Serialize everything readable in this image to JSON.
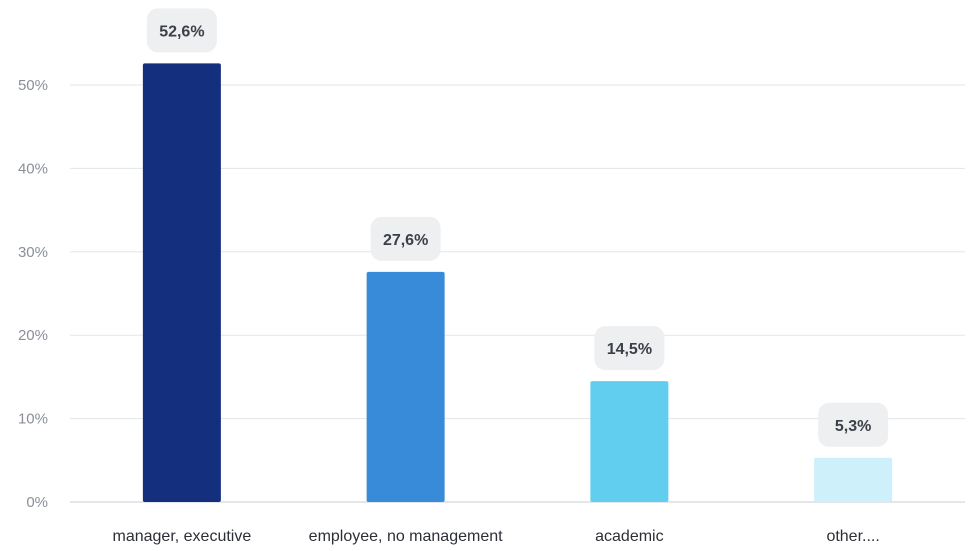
{
  "chart_data": {
    "type": "bar",
    "categories": [
      "manager, executive",
      "employee, no management",
      "academic",
      "other...."
    ],
    "values": [
      52.6,
      27.6,
      14.5,
      5.3
    ],
    "data_labels": [
      "52,6%",
      "27,6%",
      "14,5%",
      "5,3%"
    ],
    "colors": [
      "#132f7e",
      "#388bd8",
      "#62ceef",
      "#cdf0fa"
    ],
    "yticks": [
      0,
      10,
      20,
      30,
      40,
      50
    ],
    "ytick_labels": [
      "0%",
      "10%",
      "20%",
      "30%",
      "40%",
      "50%"
    ],
    "ylim": [
      0,
      50
    ],
    "grid": true,
    "legend": "none",
    "title": "",
    "xlabel": "",
    "ylabel": ""
  }
}
